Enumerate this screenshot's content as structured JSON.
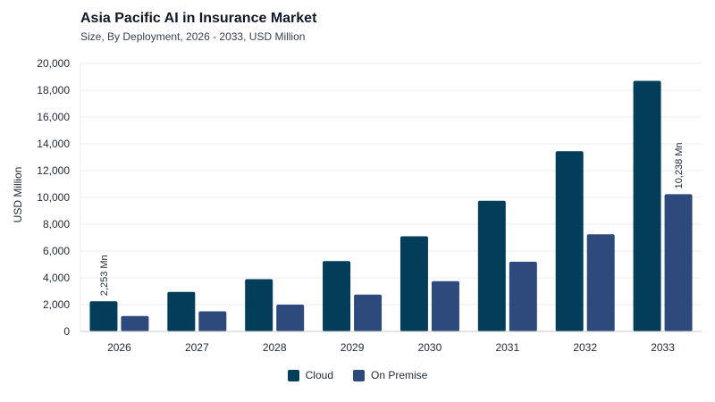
{
  "chart_data": {
    "type": "bar",
    "title": "Asia Pacific AI in Insurance Market",
    "subtitle": "Size, By Deployment, 2026 - 2033, USD Million",
    "ylabel": "USD Million",
    "xlabel": "",
    "categories": [
      "2026",
      "2027",
      "2028",
      "2029",
      "2030",
      "2031",
      "2032",
      "2033"
    ],
    "ylim": [
      0,
      20000
    ],
    "yticks": [
      0,
      2000,
      4000,
      6000,
      8000,
      10000,
      12000,
      14000,
      16000,
      18000,
      20000
    ],
    "ytick_labels": [
      "0",
      "2,000",
      "4,000",
      "6,000",
      "8,000",
      "10,000",
      "12,000",
      "14,000",
      "16,000",
      "18,000",
      "20,000"
    ],
    "grid": true,
    "legend_position": "bottom-center",
    "series": [
      {
        "name": "Cloud",
        "color": "#023e5a",
        "values": [
          2253,
          2950,
          3900,
          5250,
          7100,
          9750,
          13450,
          18700
        ]
      },
      {
        "name": "On Premise",
        "color": "#2e4a7c",
        "values": [
          1150,
          1500,
          2000,
          2750,
          3750,
          5200,
          7250,
          10238
        ]
      }
    ],
    "annotations": [
      {
        "series": 0,
        "category": "2026",
        "text": "2,253 Mn"
      },
      {
        "series": 1,
        "category": "2033",
        "text": "10,238 Mn"
      }
    ]
  }
}
